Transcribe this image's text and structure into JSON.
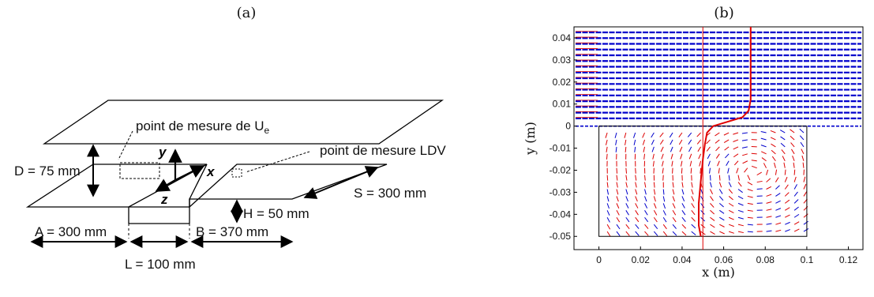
{
  "panels": {
    "a": {
      "label": "(a)"
    },
    "b": {
      "label": "(b)"
    }
  },
  "diagram": {
    "ue_label": "point de mesure de U",
    "ue_sub": "e",
    "ldv_label": "point de mesure LDV",
    "axis_y": "y",
    "axis_x": "x",
    "axis_z": "z",
    "dim_D": "D = 75 mm",
    "dim_S": "S = 300 mm",
    "dim_H": "H = 50 mm",
    "dim_A": "A = 300 mm",
    "dim_B": "B = 370 mm",
    "dim_L": "L = 100 mm"
  },
  "chart_data": {
    "type": "quiver",
    "xlabel": "x (m)",
    "ylabel": "y (m)",
    "xlim": [
      -0.012,
      0.127
    ],
    "ylim": [
      -0.056,
      0.045
    ],
    "xticks": [
      0,
      0.02,
      0.04,
      0.06,
      0.08,
      0.1,
      0.12
    ],
    "xtick_labels": [
      "0",
      "0.02",
      "0.04",
      "0.06",
      "0.08",
      "0.1",
      "0.12"
    ],
    "yticks": [
      0.04,
      0.03,
      0.02,
      0.01,
      0,
      -0.01,
      -0.02,
      -0.03,
      -0.04,
      -0.05
    ],
    "ytick_labels": [
      "0.04",
      "0.03",
      "0.02",
      "0.01",
      "0",
      "-0.01",
      "-0.02",
      "-0.03",
      "-0.04",
      "-0.05"
    ],
    "cavity": {
      "x": [
        0,
        0.1
      ],
      "y": [
        -0.05,
        0
      ]
    },
    "vertical_line_x": 0.05,
    "vortex_center": [
      0.075,
      -0.021
    ],
    "velocity_profile": [
      [
        0.049,
        -0.05
      ],
      [
        0.048,
        -0.045
      ],
      [
        0.048,
        -0.035
      ],
      [
        0.049,
        -0.025
      ],
      [
        0.05,
        -0.015
      ],
      [
        0.051,
        -0.008
      ],
      [
        0.052,
        -0.003
      ],
      [
        0.055,
        0
      ],
      [
        0.062,
        0.002
      ],
      [
        0.069,
        0.004
      ],
      [
        0.072,
        0.007
      ],
      [
        0.073,
        0.012
      ],
      [
        0.073,
        0.02
      ],
      [
        0.073,
        0.03
      ],
      [
        0.073,
        0.045
      ]
    ],
    "colors": {
      "outer_flow": "#0000cc",
      "cavity_flow": "#dd0000",
      "profile": "#e00000"
    }
  }
}
